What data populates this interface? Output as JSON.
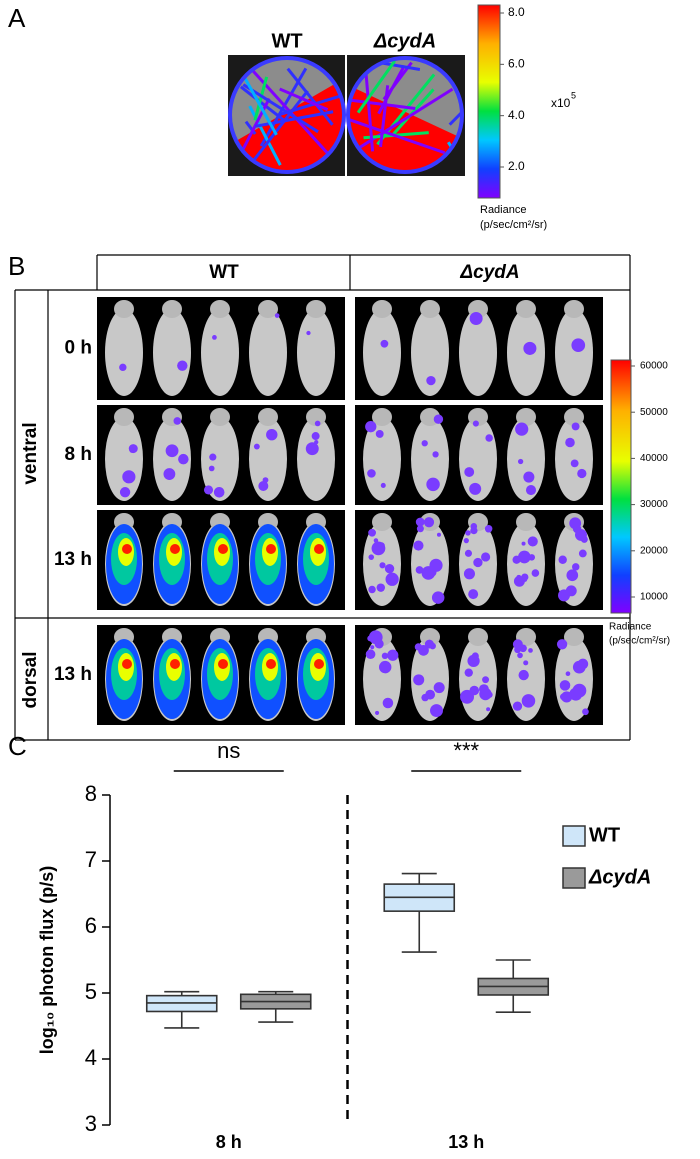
{
  "panel_a": {
    "label": "A",
    "columns": [
      "WT",
      "ΔcydA"
    ],
    "colorbar": {
      "ticks": [
        {
          "value": 8,
          "label": "8.0"
        },
        {
          "value": 6,
          "label": "6.0"
        },
        {
          "value": 4,
          "label": "4.0"
        },
        {
          "value": 2,
          "label": "2.0"
        }
      ],
      "multiplier": "x10",
      "exponent": "5",
      "title": "Radiance",
      "unit": "(p/sec/cm²/sr)"
    }
  },
  "panel_b": {
    "label": "B",
    "columns": [
      "WT",
      "ΔcydA"
    ],
    "views": [
      {
        "label": "ventral",
        "times": [
          "0 h",
          "8 h",
          "13 h"
        ]
      },
      {
        "label": "dorsal",
        "times": [
          "13 h"
        ]
      }
    ],
    "colorbar": {
      "ticks": [
        60000,
        50000,
        40000,
        30000,
        20000,
        10000
      ],
      "title": "Radiance",
      "unit": "(p/sec/cm²/sr)"
    }
  },
  "chart_data": {
    "type": "box",
    "panel_label": "C",
    "ylabel": "log₁₀ photon flux (p/s)",
    "categories": [
      "8 h",
      "13 h"
    ],
    "ylim": [
      3,
      8
    ],
    "yticks": [
      3,
      4,
      5,
      6,
      7,
      8
    ],
    "series": [
      {
        "name": "WT",
        "color": "#cfe6f9",
        "min": [
          4.47,
          5.62
        ],
        "q1": [
          4.72,
          6.24
        ],
        "median": [
          4.85,
          6.45
        ],
        "q3": [
          4.96,
          6.65
        ],
        "max": [
          5.02,
          6.81
        ]
      },
      {
        "name": "ΔcydA",
        "color": "#9a9a9a",
        "min": [
          4.56,
          4.71
        ],
        "q1": [
          4.76,
          4.97
        ],
        "median": [
          4.87,
          5.1
        ],
        "q3": [
          4.98,
          5.22
        ],
        "max": [
          5.02,
          5.5
        ]
      }
    ],
    "annotations": [
      "ns",
      "***"
    ]
  }
}
